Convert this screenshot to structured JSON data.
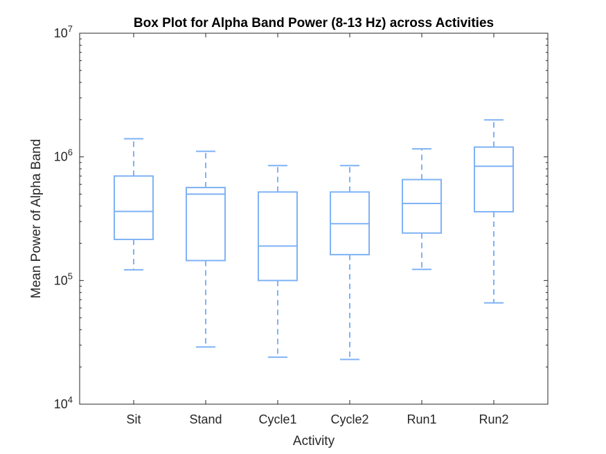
{
  "chart_data": {
    "type": "box",
    "title": "Box Plot for Alpha Band Power (8-13 Hz) across Activities",
    "xlabel": "Activity",
    "ylabel": "Mean Power of Alpha Band",
    "yscale": "log",
    "ylim": [
      10000,
      10000000
    ],
    "ytick_base": "10",
    "ytick_exponents": [
      "4",
      "5",
      "6",
      "7"
    ],
    "grid": false,
    "box_color": "#7EB2F5",
    "categories": [
      "Sit",
      "Stand",
      "Cycle1",
      "Cycle2",
      "Run1",
      "Run2"
    ],
    "boxes": [
      {
        "whisker_low": 122000,
        "q1": 215000,
        "median": 362000,
        "q3": 700000,
        "whisker_high": 1400000
      },
      {
        "whisker_low": 29000,
        "q1": 145000,
        "median": 500000,
        "q3": 565000,
        "whisker_high": 1110000
      },
      {
        "whisker_low": 24000,
        "q1": 100000,
        "median": 190000,
        "q3": 520000,
        "whisker_high": 850000
      },
      {
        "whisker_low": 23000,
        "q1": 162000,
        "median": 288000,
        "q3": 520000,
        "whisker_high": 850000
      },
      {
        "whisker_low": 123000,
        "q1": 242000,
        "median": 420000,
        "q3": 655000,
        "whisker_high": 1160000
      },
      {
        "whisker_low": 66000,
        "q1": 360000,
        "median": 840000,
        "q3": 1200000,
        "whisker_high": 1990000
      }
    ]
  }
}
